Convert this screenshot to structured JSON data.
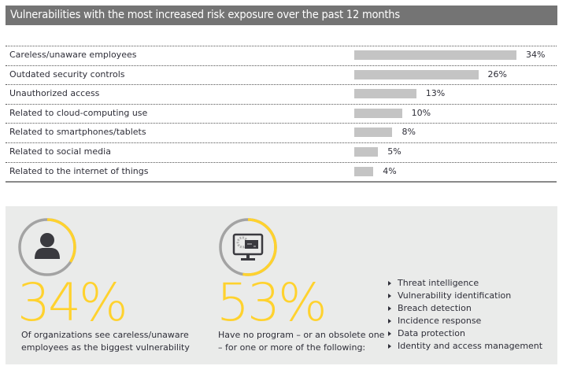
{
  "header": {
    "title": "Vulnerabilities with the most increased risk exposure over the past 12 months"
  },
  "chart_data": {
    "type": "bar",
    "orientation": "horizontal",
    "title": "Vulnerabilities with the most increased risk exposure over the past 12 months",
    "categories": [
      "Careless/unaware employees",
      "Outdated security controls",
      "Unauthorized access",
      "Related to cloud-computing use",
      "Related to smartphones/tablets",
      "Related to social media",
      "Related to the internet of things"
    ],
    "values": [
      34,
      26,
      13,
      10,
      8,
      5,
      4
    ],
    "value_labels": [
      "34%",
      "26%",
      "13%",
      "10%",
      "8%",
      "5%",
      "4%"
    ],
    "unit": "%",
    "xlabel": "",
    "ylabel": "",
    "xlim": [
      0,
      34
    ],
    "grid": false,
    "bar_color": "#c4c4c4"
  },
  "stats": [
    {
      "value": "34%",
      "fraction": 0.34,
      "icon": "person-icon",
      "caption_lines": [
        "Of organizations see careless/unaware",
        "employees as the biggest vulnerability"
      ]
    },
    {
      "value": "53%",
      "fraction": 0.53,
      "icon": "monitor-gear-icon",
      "caption_lines": [
        "Have no program – or an obsolete one",
        "– for one or more of the following:"
      ]
    }
  ],
  "program_list": [
    "Threat intelligence",
    "Vulnerability identification",
    "Breach detection",
    "Incidence response",
    "Data protection",
    "Identity and access management"
  ],
  "colors": {
    "accent": "#ffd22e",
    "ring_track": "#a3a3a3",
    "header_bg": "#747474",
    "panel_bg": "#eaebea",
    "icon": "#3a3a3f"
  }
}
